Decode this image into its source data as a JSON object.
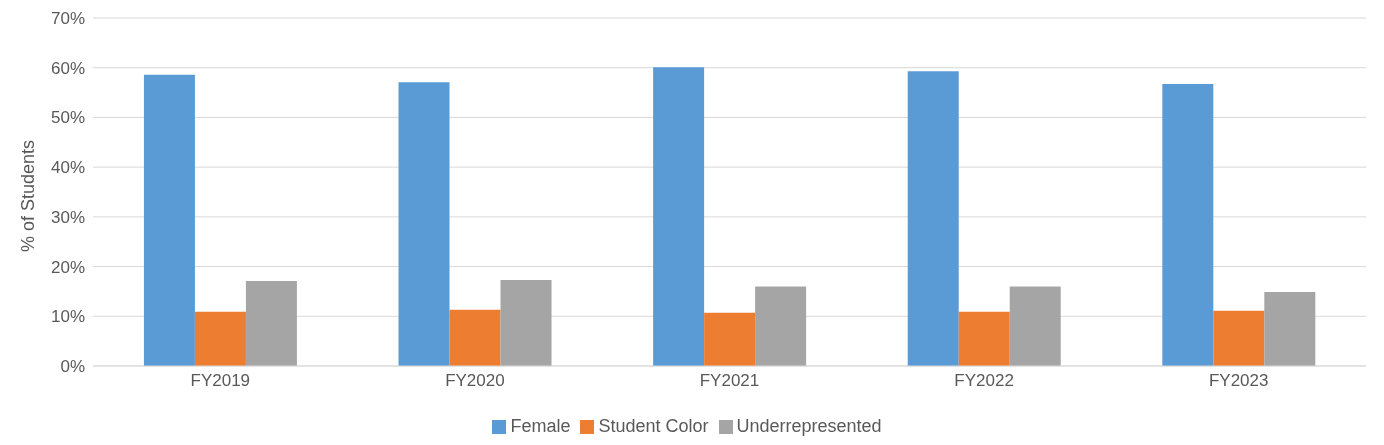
{
  "chart_data": {
    "type": "bar",
    "ylabel": "% of Students",
    "categories": [
      "FY2019",
      "FY2020",
      "FY2021",
      "FY2022",
      "FY2023"
    ],
    "series": [
      {
        "name": "Female",
        "color": "#5b9bd5",
        "values": [
          58.6,
          57.1,
          60.1,
          59.3,
          56.7
        ]
      },
      {
        "name": "Student Color",
        "color": "#ed7d31",
        "values": [
          10.9,
          11.3,
          10.7,
          10.9,
          11.1
        ]
      },
      {
        "name": "Underrepresented",
        "color": "#a5a5a5",
        "values": [
          17.1,
          17.3,
          16.0,
          16.0,
          14.9
        ]
      }
    ],
    "ylim": [
      0,
      70
    ],
    "yticks": [
      {
        "value": 0,
        "label": "0%"
      },
      {
        "value": 10,
        "label": "10%"
      },
      {
        "value": 20,
        "label": "20%"
      },
      {
        "value": 30,
        "label": "30%"
      },
      {
        "value": 40,
        "label": "40%"
      },
      {
        "value": 50,
        "label": "50%"
      },
      {
        "value": 60,
        "label": "60%"
      },
      {
        "value": 70,
        "label": "70%"
      }
    ],
    "grid": "y",
    "legend": "bottom"
  }
}
